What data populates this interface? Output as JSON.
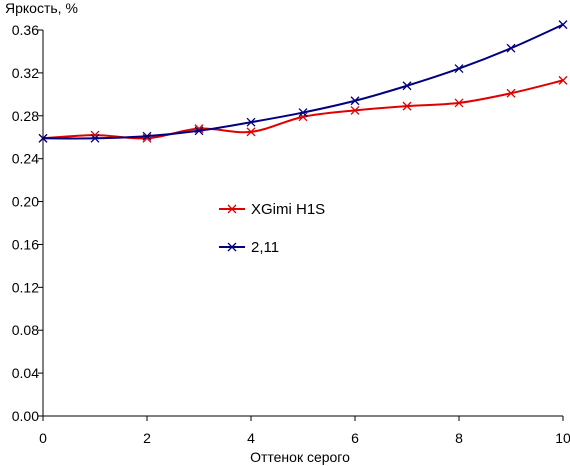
{
  "chart_data": {
    "type": "line",
    "title": "",
    "ylabel": "Яркость, %",
    "xlabel": "Оттенок серого",
    "xlim": [
      0,
      10
    ],
    "ylim": [
      0,
      0.36
    ],
    "xticks": [
      0,
      2,
      4,
      6,
      8,
      10
    ],
    "xtick_labels": [
      "0",
      "2",
      "4",
      "6",
      "8",
      "10"
    ],
    "yticks": [
      0,
      0.04,
      0.08,
      0.12,
      0.16,
      0.2,
      0.24,
      0.28,
      0.32,
      0.36
    ],
    "ytick_labels": [
      "0.00",
      "0.04",
      "0.08",
      "0.12",
      "0.16",
      "0.20",
      "0.24",
      "0.28",
      "0.32",
      "0.36"
    ],
    "grid": false,
    "legend_position": "center",
    "x": [
      0,
      1,
      2,
      3,
      4,
      5,
      6,
      7,
      8,
      9,
      10
    ],
    "series": [
      {
        "name": "XGimi H1S",
        "color": "#e00000",
        "marker": "x",
        "values": [
          0.259,
          0.262,
          0.259,
          0.268,
          0.265,
          0.279,
          0.285,
          0.289,
          0.292,
          0.301,
          0.313
        ]
      },
      {
        "name": "2,11",
        "color": "#000080",
        "marker": "x",
        "values": [
          0.259,
          0.259,
          0.261,
          0.266,
          0.274,
          0.283,
          0.294,
          0.308,
          0.324,
          0.343,
          0.365
        ]
      }
    ]
  }
}
